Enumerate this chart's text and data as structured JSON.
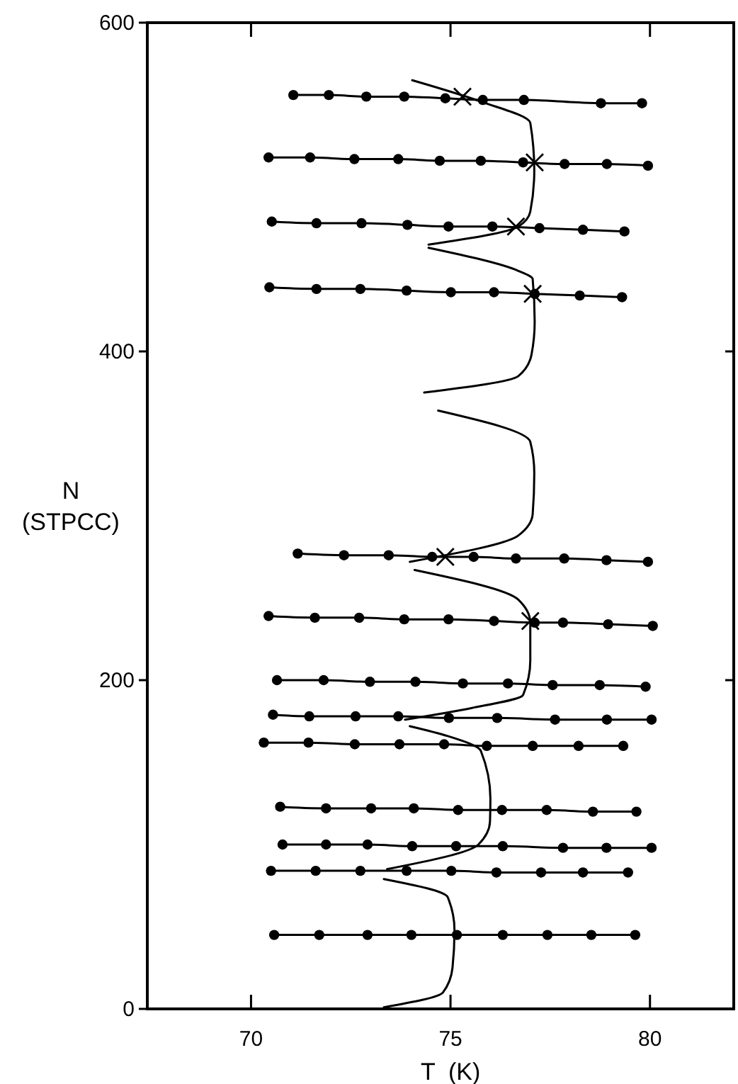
{
  "chart_data": {
    "type": "line",
    "xlabel": "T  (K)",
    "ylabel": "N (STPCC)",
    "xlim": [
      67.4,
      82.1
    ],
    "ylim": [
      0,
      600
    ],
    "xticks": [
      70,
      75,
      80
    ],
    "yticks": [
      0,
      200,
      400,
      600
    ],
    "grid": false,
    "line_style": "solid",
    "series": [
      {
        "color": "#000000",
        "marker": "circle",
        "x": [
          71.06,
          71.95,
          72.89,
          73.84,
          74.87,
          75.81,
          76.84,
          78.77,
          79.8
        ],
        "values": [
          556,
          556,
          555,
          555,
          554,
          553,
          553,
          551,
          551
        ]
      },
      {
        "color": "#000000",
        "marker": "circle",
        "x": [
          70.44,
          71.48,
          72.59,
          73.69,
          74.73,
          75.76,
          76.82,
          77.86,
          78.92,
          79.95
        ],
        "values": [
          518,
          518,
          517,
          517,
          516,
          516,
          515,
          514,
          514,
          513
        ]
      },
      {
        "color": "#000000",
        "marker": "circle",
        "x": [
          70.52,
          71.64,
          72.77,
          73.92,
          74.95,
          76.05,
          77.23,
          78.32,
          79.36
        ],
        "values": [
          479,
          478,
          478,
          477,
          476,
          476,
          475,
          474,
          473
        ]
      },
      {
        "color": "#000000",
        "marker": "circle",
        "x": [
          70.46,
          71.64,
          72.74,
          73.9,
          75.01,
          76.09,
          77.11,
          78.24,
          79.3
        ],
        "values": [
          439,
          438,
          438,
          437,
          436,
          436,
          435,
          434,
          433
        ]
      },
      {
        "color": "#000000",
        "marker": "circle",
        "x": [
          71.17,
          72.33,
          73.45,
          74.54,
          75.58,
          76.64,
          77.85,
          78.91,
          79.95
        ],
        "values": [
          277,
          276,
          276,
          275,
          275,
          274,
          274,
          273,
          272
        ]
      },
      {
        "color": "#000000",
        "marker": "circle",
        "x": [
          70.44,
          71.6,
          72.71,
          73.84,
          74.95,
          76.09,
          77.11,
          77.82,
          78.95,
          80.07
        ],
        "values": [
          239,
          238,
          238,
          237,
          237,
          236,
          235,
          235,
          234,
          233
        ]
      },
      {
        "color": "#000000",
        "marker": "circle",
        "x": [
          70.65,
          71.82,
          72.98,
          74.12,
          75.31,
          76.44,
          77.56,
          78.74,
          79.89
        ],
        "values": [
          200,
          200,
          199,
          199,
          198,
          198,
          197,
          197,
          196
        ]
      },
      {
        "color": "#000000",
        "marker": "circle",
        "x": [
          70.55,
          71.46,
          72.62,
          73.69,
          74.96,
          76.17,
          77.62,
          78.92,
          80.04
        ],
        "values": [
          179,
          178,
          178,
          178,
          177,
          177,
          176,
          176,
          176
        ]
      },
      {
        "color": "#000000",
        "marker": "circle",
        "x": [
          70.32,
          71.44,
          72.6,
          73.72,
          74.84,
          75.91,
          77.06,
          78.21,
          79.33
        ],
        "values": [
          162,
          162,
          161,
          161,
          161,
          160,
          160,
          160,
          160
        ]
      },
      {
        "color": "#000000",
        "marker": "circle",
        "x": [
          70.73,
          71.88,
          73.01,
          74.08,
          75.19,
          76.29,
          77.41,
          78.57,
          79.66
        ],
        "values": [
          123,
          122,
          122,
          122,
          121,
          121,
          121,
          120,
          120
        ]
      },
      {
        "color": "#000000",
        "marker": "circle",
        "x": [
          70.79,
          71.88,
          72.92,
          74.04,
          75.14,
          76.31,
          77.82,
          78.91,
          80.04
        ],
        "values": [
          100,
          100,
          100,
          99,
          99,
          99,
          98,
          98,
          98
        ]
      },
      {
        "color": "#000000",
        "marker": "circle",
        "x": [
          70.5,
          71.62,
          72.74,
          73.9,
          75.02,
          76.15,
          77.27,
          78.32,
          79.45
        ],
        "values": [
          84,
          84,
          84,
          84,
          84,
          83,
          83,
          83,
          83
        ]
      },
      {
        "color": "#000000",
        "marker": "circle",
        "x": [
          70.58,
          71.71,
          72.92,
          74.02,
          75.16,
          76.31,
          77.43,
          78.53,
          79.63
        ],
        "values": [
          45,
          45,
          45,
          45,
          45,
          45,
          45,
          45,
          45
        ]
      },
      {
        "type": "scatter",
        "color": "#000000",
        "marker": "cross",
        "x": [
          75.3,
          77.11,
          76.64,
          77.06,
          74.87,
          77.0
        ],
        "values": [
          555,
          515,
          476,
          435,
          275,
          236
        ]
      },
      {
        "color": "#000000",
        "marker": "none",
        "x": [
          73.33,
          74.81,
          75.05,
          75.1,
          74.93,
          73.33,
          null,
          73.41,
          75.7,
          75.99,
          76.0,
          75.76,
          74.93,
          73.98,
          null,
          73.86,
          75.52,
          76.82,
          77.0,
          77.0,
          76.7,
          74.1,
          null,
          73.98,
          76.7,
          77.06,
          77.1,
          77.0,
          74.69,
          null,
          74.34,
          76.7,
          77.03,
          77.11,
          77.06,
          76.7,
          74.45,
          null,
          74.45,
          76.7,
          77.0,
          77.1,
          77.0,
          75.76,
          74.04
        ],
        "values": [
          1,
          10,
          25,
          48,
          68,
          79,
          null,
          85,
          100,
          114,
          128,
          157,
          166,
          172,
          null,
          176,
          183,
          191,
          212,
          235,
          249,
          267,
          null,
          272,
          288,
          301,
          326,
          345,
          364,
          null,
          375,
          385,
          398,
          418,
          444,
          449,
          463,
          null,
          465,
          476,
          485,
          510,
          539,
          552,
          565
        ]
      }
    ]
  }
}
